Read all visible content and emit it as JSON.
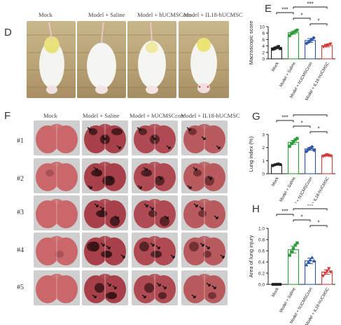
{
  "panels": {
    "d": {
      "letter": "D",
      "captions": [
        "Mock",
        "Model + Saline",
        "Model + hUCMSCcon",
        "Model + IL18-hUCMSC"
      ]
    },
    "f": {
      "letter": "F",
      "captions": [
        "Mock",
        "Model + Saline",
        "Model + hUCMSCcon",
        "Model + IL18-hUCMSC"
      ],
      "rows": [
        "#1",
        "#2",
        "#3",
        "#4",
        "#5"
      ]
    }
  },
  "chart_data": [
    {
      "panel": "E",
      "type": "bar",
      "ylabel": "Macroscopic score",
      "categories": [
        "Mock",
        "Model + Saline",
        "Model + hUCMSCcon",
        "Model + IL18-hUCMSC"
      ],
      "values": [
        3.4,
        8.1,
        5.7,
        4.1
      ],
      "errors": [
        0.3,
        0.4,
        0.6,
        0.4
      ],
      "ylim": [
        0,
        10
      ],
      "yticks": [
        0,
        2,
        4,
        6,
        8,
        10
      ],
      "points": [
        [
          3.0,
          3.2,
          3.5,
          3.8,
          3.2
        ],
        [
          7.2,
          7.8,
          8.2,
          8.6,
          8.9
        ],
        [
          4.8,
          5.3,
          5.9,
          6.5
        ],
        [
          3.7,
          4.0,
          4.3,
          4.6
        ]
      ],
      "colors": [
        "#222222",
        "#2e9e3a",
        "#2f56a8",
        "#d23b3b"
      ],
      "markers": [
        "square",
        "square",
        "diamond",
        "triangle-down"
      ],
      "significance": [
        {
          "a": 0,
          "b": 1,
          "label": "***",
          "level": 0
        },
        {
          "a": 1,
          "b": 2,
          "label": "*",
          "level": 1
        },
        {
          "a": 2,
          "b": 3,
          "label": "*",
          "level": 2
        },
        {
          "a": 1,
          "b": 3,
          "label": "***",
          "level": 3
        }
      ],
      "grid": false
    },
    {
      "panel": "G",
      "type": "bar",
      "ylabel": "Lung index (%)",
      "categories": [
        "Mock",
        "Model + Saline",
        "Model + hUCMSCcon",
        "Model + IL18-hUCMSC"
      ],
      "values": [
        0.7,
        2.4,
        1.9,
        1.4
      ],
      "errors": [
        0.05,
        0.15,
        0.1,
        0.06
      ],
      "ylim": [
        0,
        3
      ],
      "yticks": [
        0,
        1,
        2,
        3
      ],
      "points": [
        [
          0.62,
          0.68,
          0.72,
          0.75,
          0.7
        ],
        [
          2.1,
          2.3,
          2.45,
          2.6,
          2.7
        ],
        [
          1.7,
          1.85,
          1.95,
          2.05,
          1.8
        ],
        [
          1.32,
          1.38,
          1.45,
          1.4,
          1.35
        ]
      ],
      "colors": [
        "#222222",
        "#2e9e3a",
        "#2f56a8",
        "#d23b3b"
      ],
      "markers": [
        "circle",
        "square",
        "diamond",
        "triangle-down"
      ],
      "significance": [
        {
          "a": 0,
          "b": 1,
          "label": "***",
          "level": 0
        },
        {
          "a": 1,
          "b": 2,
          "label": "*",
          "level": 1
        },
        {
          "a": 2,
          "b": 3,
          "label": "*",
          "level": 2
        },
        {
          "a": 1,
          "b": 3,
          "label": "***",
          "level": 3
        }
      ],
      "grid": false
    },
    {
      "panel": "H",
      "type": "bar",
      "ylabel": "Area of lung injury",
      "categories": [
        "Mock",
        "Model + Saline",
        "Model + hUCMSCcon",
        "Model + IL18-hUCMSC"
      ],
      "values": [
        0.0,
        0.62,
        0.42,
        0.22
      ],
      "errors": [
        0.0,
        0.06,
        0.05,
        0.04
      ],
      "ylim": [
        0,
        1.0
      ],
      "yticks": [
        0.0,
        0.2,
        0.4,
        0.6,
        0.8,
        1.0
      ],
      "points": [
        [
          0,
          0,
          0,
          0,
          0
        ],
        [
          0.52,
          0.58,
          0.64,
          0.7,
          0.74
        ],
        [
          0.35,
          0.4,
          0.44,
          0.48,
          0.42
        ],
        [
          0.15,
          0.2,
          0.24,
          0.28,
          0.22
        ]
      ],
      "colors": [
        "#222222",
        "#2e9e3a",
        "#2f56a8",
        "#d23b3b"
      ],
      "markers": [
        "circle",
        "square",
        "triangle-up",
        "triangle-down"
      ],
      "significance": [
        {
          "a": 0,
          "b": 1,
          "label": "***",
          "level": 0
        },
        {
          "a": 1,
          "b": 2,
          "label": "*",
          "level": 1
        },
        {
          "a": 2,
          "b": 3,
          "label": "*",
          "level": 2
        },
        {
          "a": 1,
          "b": 3,
          "label": "***",
          "level": 3
        }
      ],
      "grid": false
    }
  ]
}
